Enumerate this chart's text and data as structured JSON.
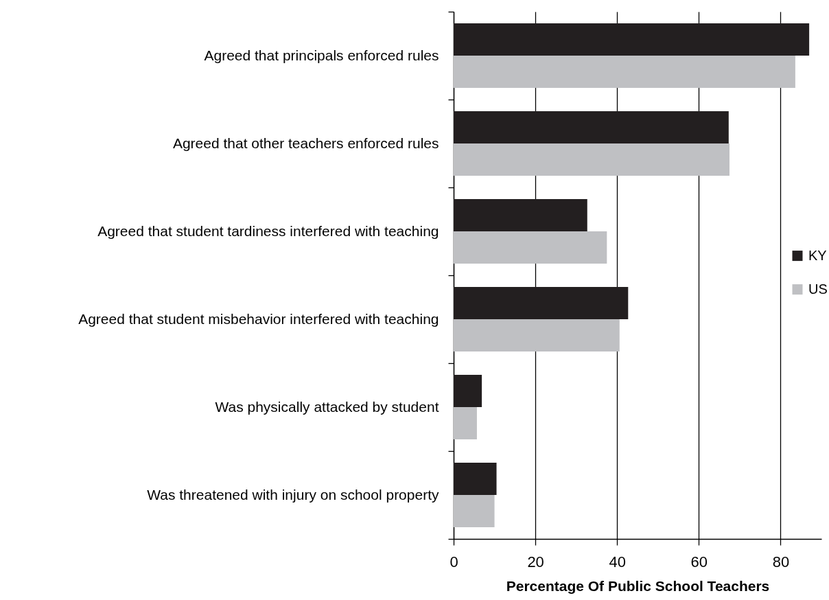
{
  "chart_data": {
    "type": "bar",
    "orientation": "horizontal",
    "categories": [
      "Agreed that principals enforced rules",
      "Agreed that other teachers enforced rules",
      "Agreed that student tardiness interfered with teaching",
      "Agreed that student misbehavior interfered with teaching",
      "Was physically attacked by student",
      "Was threatened with injury on school property"
    ],
    "series": [
      {
        "name": "KY",
        "color": "#231f20",
        "values": [
          87,
          67.3,
          32.7,
          42.7,
          6.9,
          10.5
        ]
      },
      {
        "name": "US",
        "color": "#bfc0c3",
        "values": [
          83.6,
          67.5,
          37.5,
          40.6,
          5.7,
          10.0
        ]
      }
    ],
    "xlabel": "Percentage Of Public School Teachers",
    "xlim": [
      0,
      90
    ],
    "xticks": [
      0,
      20,
      40,
      60,
      80
    ],
    "grid": "x",
    "legend": "right"
  }
}
